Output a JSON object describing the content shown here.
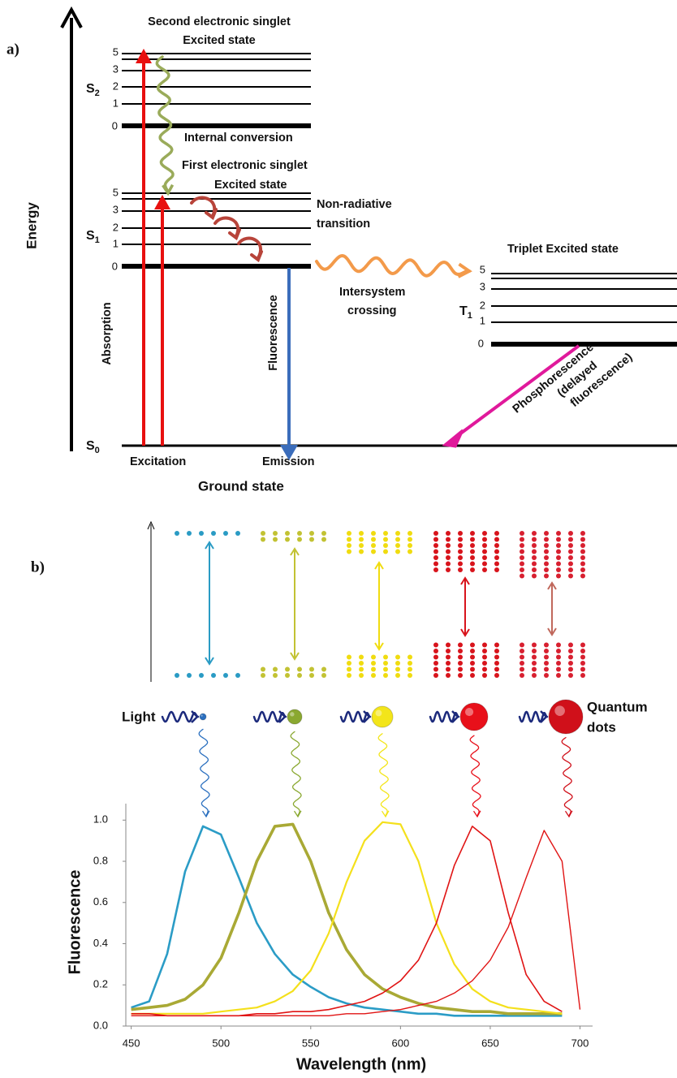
{
  "panel_a": {
    "label": "a)",
    "axis_label": "Energy",
    "s2": {
      "title": [
        "Second electronic singlet",
        "Excited state"
      ],
      "state": {
        "main": "S",
        "sub": "2"
      },
      "levels": [
        5,
        3,
        2,
        1,
        0
      ]
    },
    "internal_conversion": "Internal conversion",
    "s1": {
      "title": [
        "First electronic singlet",
        "Excited state"
      ],
      "state": {
        "main": "S",
        "sub": "1"
      },
      "levels": [
        5,
        3,
        2,
        1,
        0
      ]
    },
    "non_radiative": [
      "Non-radiative",
      "transition"
    ],
    "triplet": {
      "title": "Triplet Excited state",
      "state": {
        "main": "T",
        "sub": "1"
      },
      "levels": [
        5,
        3,
        2,
        1,
        0
      ]
    },
    "intersystem": [
      "Intersystem",
      "crossing"
    ],
    "absorption": "Absorption",
    "fluorescence": "Fluorescence",
    "phosphorescence": [
      "Phosphorescence",
      "(delayed",
      "fluorescence)"
    ],
    "ground": {
      "state": {
        "main": "S",
        "sub": "0"
      },
      "excitation": "Excitation",
      "emission": "Emission",
      "title": "Ground state"
    }
  },
  "panel_b": {
    "label": "b)",
    "light": "Light",
    "quantum_dots": [
      "Quantum",
      "dots"
    ]
  },
  "chart_data": {
    "type": "line",
    "xlabel": "Wavelength (nm)",
    "ylabel": "Fluorescence",
    "x": [
      450,
      460,
      470,
      480,
      490,
      500,
      510,
      520,
      530,
      540,
      550,
      560,
      570,
      580,
      590,
      600,
      610,
      620,
      630,
      640,
      650,
      660,
      670,
      680,
      690,
      700
    ],
    "series": [
      {
        "color": "#2b9cc6",
        "values": [
          0.09,
          0.12,
          0.35,
          0.75,
          0.97,
          0.93,
          0.72,
          0.5,
          0.35,
          0.25,
          0.19,
          0.14,
          0.11,
          0.09,
          0.08,
          0.07,
          0.06,
          0.06,
          0.05,
          0.05,
          0.05,
          0.05,
          0.05,
          0.05,
          0.05,
          null
        ]
      },
      {
        "color": "#a9a935",
        "values": [
          0.08,
          0.09,
          0.1,
          0.13,
          0.2,
          0.33,
          0.55,
          0.8,
          0.97,
          0.98,
          0.8,
          0.55,
          0.37,
          0.25,
          0.18,
          0.14,
          0.11,
          0.09,
          0.08,
          0.07,
          0.07,
          0.06,
          0.06,
          0.06,
          0.06,
          null
        ]
      },
      {
        "color": "#f4e01c",
        "values": [
          0.06,
          0.06,
          0.06,
          0.06,
          0.06,
          0.07,
          0.08,
          0.09,
          0.12,
          0.17,
          0.27,
          0.45,
          0.7,
          0.9,
          0.99,
          0.98,
          0.8,
          0.5,
          0.3,
          0.18,
          0.12,
          0.09,
          0.08,
          0.07,
          0.06,
          null
        ]
      },
      {
        "color": "#e01414",
        "values": [
          0.06,
          0.06,
          0.05,
          0.05,
          0.05,
          0.05,
          0.05,
          0.06,
          0.06,
          0.07,
          0.07,
          0.08,
          0.1,
          0.12,
          0.16,
          0.22,
          0.32,
          0.5,
          0.78,
          0.97,
          0.9,
          0.55,
          0.25,
          0.12,
          0.07,
          null
        ]
      },
      {
        "color": "#e01414",
        "values": [
          0.05,
          0.05,
          0.05,
          0.05,
          0.05,
          0.05,
          0.05,
          0.05,
          0.05,
          0.05,
          0.05,
          0.05,
          0.06,
          0.06,
          0.07,
          0.08,
          0.1,
          0.12,
          0.16,
          0.22,
          0.32,
          0.48,
          0.72,
          0.95,
          0.8,
          0.08
        ]
      }
    ],
    "xlim": [
      447,
      707
    ],
    "ylim": [
      0,
      1.08
    ],
    "xticks": [
      450,
      500,
      550,
      600,
      650,
      700
    ],
    "yticks": [
      {
        "value": 0,
        "label": "0.0"
      },
      0.2,
      0.4,
      0.6,
      0.8,
      {
        "value": 1,
        "label": "1.0"
      }
    ]
  }
}
